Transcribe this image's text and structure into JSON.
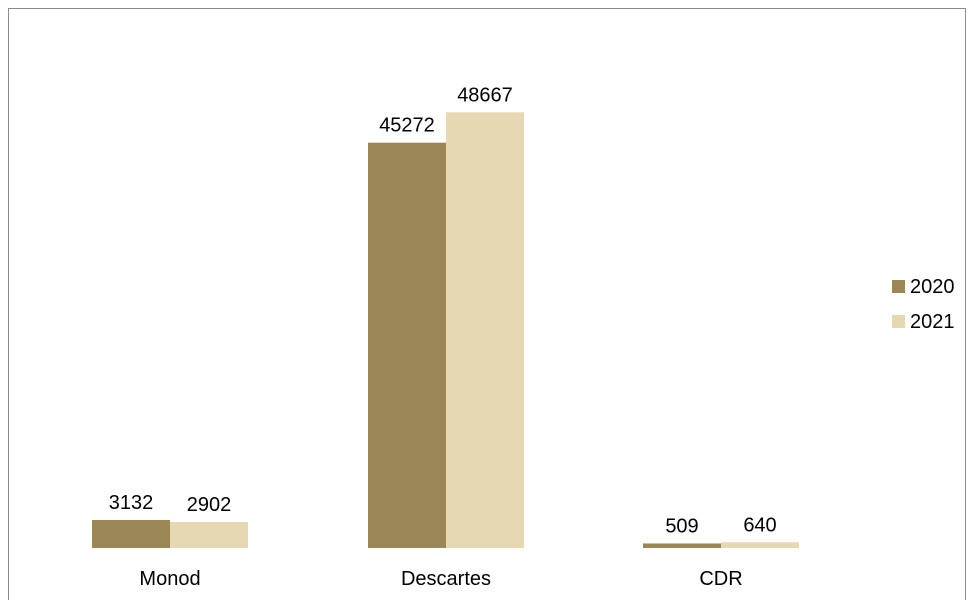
{
  "chart_data": {
    "type": "bar",
    "categories": [
      "Monod",
      "Descartes",
      "CDR"
    ],
    "series": [
      {
        "name": "2020",
        "values": [
          3132,
          45272,
          509
        ],
        "color": "#9b8656"
      },
      {
        "name": "2021",
        "values": [
          2902,
          48667,
          640
        ],
        "color": "#e5d8b2"
      }
    ],
    "ylim": [
      0,
      52500
    ],
    "grid": false,
    "legend": "right",
    "data_labels": true,
    "title": "",
    "xlabel": "",
    "ylabel": ""
  }
}
